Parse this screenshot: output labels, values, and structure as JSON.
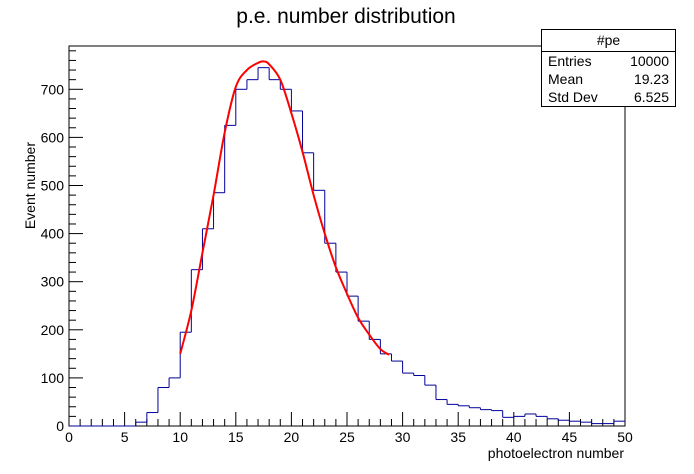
{
  "chart_data": {
    "type": "bar",
    "title": "p.e. number distribution",
    "xlabel": "photoelectron number",
    "ylabel": "Event number",
    "xlim": [
      0,
      50
    ],
    "ylim": [
      0,
      790
    ],
    "xticks": [
      0,
      5,
      10,
      15,
      20,
      25,
      30,
      35,
      40,
      45,
      50
    ],
    "yticks": [
      0,
      100,
      200,
      300,
      400,
      500,
      600,
      700
    ],
    "bin_width": 1,
    "bin_edges_start": 0,
    "histogram": {
      "name": "#pe",
      "color": "#000099",
      "values": [
        0,
        0,
        0,
        0,
        0,
        0,
        8,
        28,
        80,
        100,
        195,
        325,
        410,
        485,
        625,
        700,
        720,
        745,
        720,
        700,
        655,
        568,
        490,
        380,
        320,
        270,
        218,
        180,
        150,
        135,
        110,
        105,
        85,
        55,
        45,
        42,
        38,
        34,
        32,
        18,
        20,
        25,
        20,
        15,
        12,
        10,
        8,
        5,
        5,
        10
      ]
    },
    "fit": {
      "color": "#ff0000",
      "x": [
        10,
        11,
        12,
        13,
        14,
        15,
        16,
        17,
        17.5,
        18,
        19,
        20,
        21,
        22,
        23,
        24,
        25,
        26,
        27,
        28,
        28.8
      ],
      "y": [
        150,
        240,
        360,
        480,
        610,
        705,
        740,
        755,
        758,
        752,
        720,
        650,
        570,
        480,
        400,
        330,
        275,
        225,
        190,
        160,
        148
      ]
    },
    "stats": {
      "title": "#pe",
      "rows": [
        {
          "label": "Entries",
          "value": "10000"
        },
        {
          "label": "Mean",
          "value": "19.23"
        },
        {
          "label": "Std Dev",
          "value": "6.525"
        }
      ]
    }
  }
}
